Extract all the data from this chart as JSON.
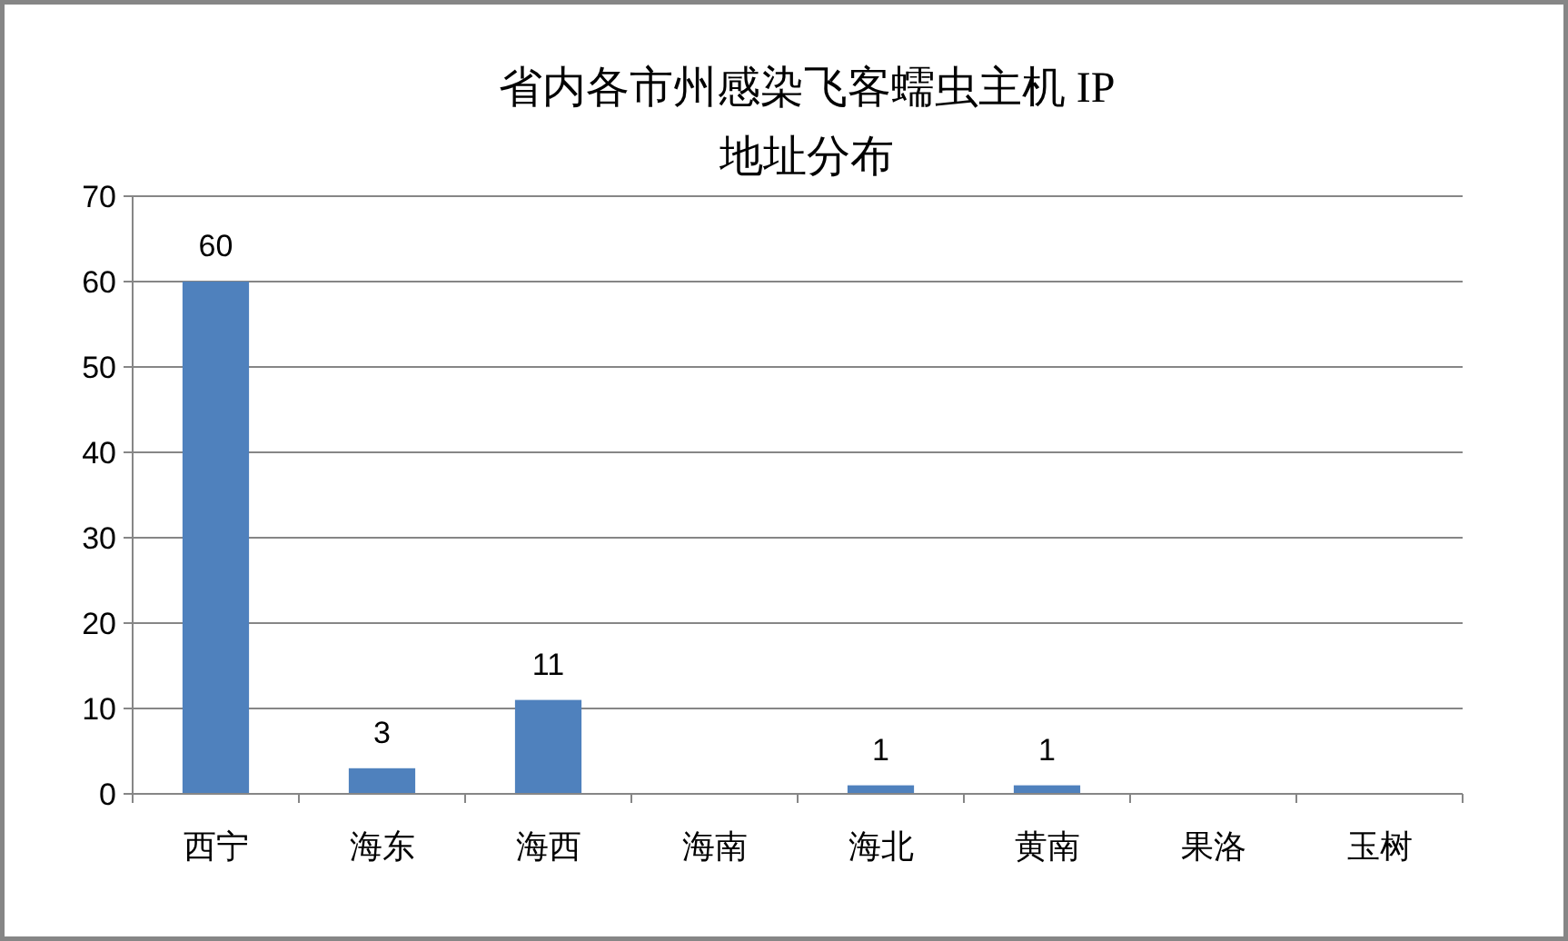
{
  "chart_data": {
    "type": "bar",
    "title": "省内各市州感染飞客蠕虫主机 IP\n地址分布",
    "categories": [
      "西宁",
      "海东",
      "海西",
      "海南",
      "海北",
      "黄南",
      "果洛",
      "玉树"
    ],
    "values": [
      60,
      3,
      11,
      0,
      1,
      1,
      0,
      0
    ],
    "value_labels": [
      "60",
      "3",
      "11",
      null,
      "1",
      "1",
      null,
      null
    ],
    "color": "#4f81bd",
    "ylim": [
      0,
      70
    ],
    "yticks": [
      0,
      10,
      20,
      30,
      40,
      50,
      60,
      70
    ],
    "grid": "y"
  }
}
